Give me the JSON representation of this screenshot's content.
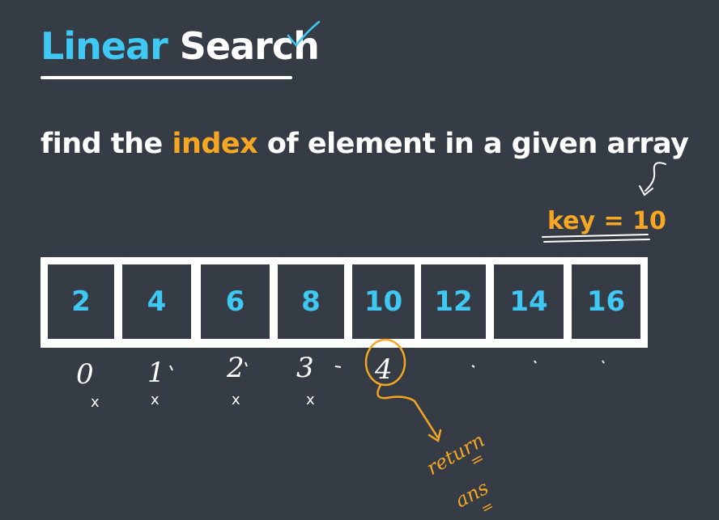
{
  "title": {
    "word1": "Linear",
    "word2": "Search"
  },
  "subtitle": {
    "before": "find the ",
    "highlight": "index",
    "after": " of element in a given array"
  },
  "key_label": "key = 10",
  "array": {
    "values": [
      "2",
      "4",
      "6",
      "8",
      "10",
      "12",
      "14",
      "16"
    ]
  },
  "annotations": {
    "indices": [
      "0",
      "1",
      "2",
      "3",
      "4"
    ],
    "marks": [
      "x",
      "x",
      "x",
      "x"
    ],
    "return_text": "return",
    "equals1": "=",
    "ans_text": "ans",
    "equals2": "="
  },
  "colors": {
    "background": "#363c45",
    "accent_blue": "#3ec8f3",
    "accent_orange": "#f5a623",
    "white": "#ffffff"
  }
}
